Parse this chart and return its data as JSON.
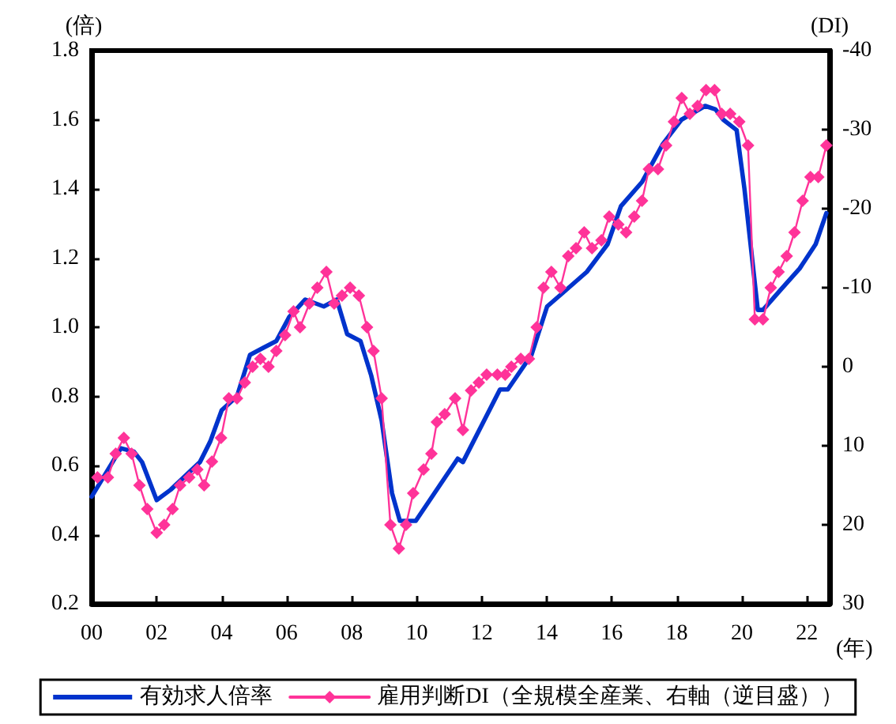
{
  "chart_data": {
    "type": "line",
    "ylabel": "(倍)",
    "y2label": "(DI)",
    "xlabel": "(年)",
    "xlim": [
      2000,
      2022.7
    ],
    "xticks": [
      {
        "value": 2000,
        "label": "00"
      },
      {
        "value": 2002,
        "label": "02"
      },
      {
        "value": 2004,
        "label": "04"
      },
      {
        "value": 2006,
        "label": "06"
      },
      {
        "value": 2008,
        "label": "08"
      },
      {
        "value": 2010,
        "label": "10"
      },
      {
        "value": 2012,
        "label": "12"
      },
      {
        "value": 2014,
        "label": "14"
      },
      {
        "value": 2016,
        "label": "16"
      },
      {
        "value": 2018,
        "label": "18"
      },
      {
        "value": 2020,
        "label": "20"
      },
      {
        "value": 2022,
        "label": "22"
      }
    ],
    "ylim": [
      0.2,
      1.8
    ],
    "yticks": [
      0.2,
      0.4,
      0.6,
      0.8,
      {
        "value": 1,
        "label": "1.0"
      },
      1.2,
      1.4,
      1.6,
      1.8
    ],
    "y2lim": [
      30,
      -40
    ],
    "y2ticks": [
      -40,
      -30,
      -20,
      -10,
      0,
      10,
      20,
      30
    ],
    "grid": false,
    "legend": "bottom",
    "series": [
      {
        "name": "有効求人倍率",
        "color": "#0033cc",
        "marker": "none",
        "x": [
          2000.0,
          2000.9,
          2001.3,
          2001.55,
          2002.0,
          2002.43,
          2003.33,
          2003.65,
          2004.0,
          2004.47,
          2004.87,
          2005.27,
          2005.68,
          2006.08,
          2006.57,
          2007.14,
          2007.54,
          2007.86,
          2008.27,
          2008.6,
          2008.92,
          2009.24,
          2009.48,
          2009.97,
          2011.26,
          2011.42,
          2012.56,
          2012.8,
          2013.53,
          2014.01,
          2014.5,
          2015.23,
          2015.87,
          2016.28,
          2016.93,
          2017.57,
          2018.14,
          2018.87,
          2019.19,
          2019.43,
          2019.84,
          2020.08,
          2020.49,
          2020.65,
          2021.21,
          2021.78,
          2022.27,
          2022.6
        ],
        "values": [
          0.51,
          0.65,
          0.64,
          0.61,
          0.5,
          0.53,
          0.61,
          0.67,
          0.76,
          0.8,
          0.92,
          0.94,
          0.96,
          1.03,
          1.08,
          1.06,
          1.08,
          0.98,
          0.96,
          0.86,
          0.73,
          0.52,
          0.44,
          0.44,
          0.62,
          0.61,
          0.82,
          0.82,
          0.92,
          1.06,
          1.1,
          1.16,
          1.24,
          1.35,
          1.42,
          1.53,
          1.6,
          1.64,
          1.63,
          1.6,
          1.57,
          1.4,
          1.05,
          1.05,
          1.11,
          1.17,
          1.24,
          1.33
        ]
      },
      {
        "name": "雇用判断DI（全規模全産業、右軸（逆目盛））",
        "color": "#ff3399",
        "marker": "diamond",
        "axis": "y2",
        "x": [
          2000.18,
          2000.5,
          2000.74,
          2000.99,
          2001.23,
          2001.47,
          2001.71,
          2002.0,
          2002.23,
          2002.49,
          2002.72,
          2003.0,
          2003.25,
          2003.46,
          2003.7,
          2003.98,
          2004.22,
          2004.47,
          2004.71,
          2004.95,
          2005.19,
          2005.44,
          2005.68,
          2005.95,
          2006.21,
          2006.41,
          2006.7,
          2006.94,
          2007.22,
          2007.46,
          2007.7,
          2007.95,
          2008.22,
          2008.47,
          2008.67,
          2008.92,
          2009.19,
          2009.45,
          2009.67,
          2009.89,
          2010.21,
          2010.45,
          2010.62,
          2010.86,
          2011.18,
          2011.42,
          2011.67,
          2011.91,
          2012.15,
          2012.48,
          2012.72,
          2012.91,
          2013.2,
          2013.45,
          2013.69,
          2013.9,
          2014.14,
          2014.42,
          2014.66,
          2014.9,
          2015.15,
          2015.39,
          2015.68,
          2015.92,
          2016.2,
          2016.44,
          2016.69,
          2016.93,
          2017.14,
          2017.42,
          2017.67,
          2017.91,
          2018.15,
          2018.4,
          2018.64,
          2018.9,
          2019.16,
          2019.38,
          2019.64,
          2019.92,
          2020.19,
          2020.4,
          2020.65,
          2020.89,
          2021.13,
          2021.38,
          2021.62,
          2021.87,
          2022.11,
          2022.35,
          2022.6
        ],
        "values": [
          14,
          14,
          11,
          9,
          11,
          15,
          18,
          21,
          20,
          18,
          15,
          14,
          13,
          15,
          12,
          9,
          4,
          4,
          2,
          0,
          -1,
          0,
          -2,
          -4,
          -7,
          -5,
          -8,
          -10,
          -12,
          -8,
          -9,
          -10,
          -9,
          -5,
          -2,
          4,
          20,
          23,
          20,
          16,
          13,
          11,
          7,
          6,
          4,
          8,
          3,
          2,
          1,
          1,
          1,
          0,
          -1,
          -1,
          -5,
          -10,
          -12,
          -10,
          -14,
          -15,
          -17,
          -15,
          -16,
          -19,
          -18,
          -17,
          -19,
          -21,
          -25,
          -25,
          -28,
          -31,
          -34,
          -32,
          -33,
          -35,
          -35,
          -32,
          -32,
          -31,
          -28,
          -6,
          -6,
          -10,
          -12,
          -14,
          -17,
          -21,
          -24,
          -24,
          -28
        ]
      }
    ]
  }
}
